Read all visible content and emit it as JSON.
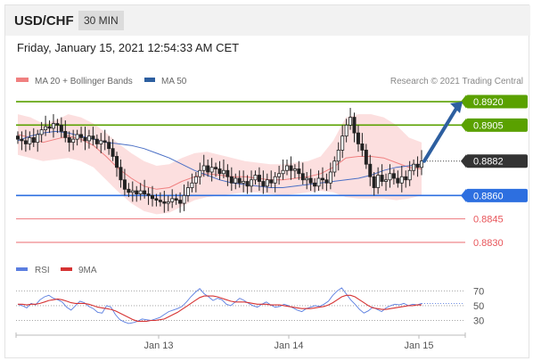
{
  "header": {
    "symbol": "USD/CHF",
    "timeframe": "30 MIN"
  },
  "datetime": "Friday, January 15, 2021 12:54:33 AM CET",
  "legend": {
    "ma20_label": "MA 20 + Bollinger Bands",
    "ma50_label": "MA 50",
    "credit": "Research © 2021 Trading Central",
    "rsi_label": "RSI",
    "ma9_label": "9MA"
  },
  "colors": {
    "green_level": "#5aa100",
    "blue_level": "#2d6fe0",
    "red_level": "#e8555a",
    "current_price": "#333333",
    "bollinger_fill": "#fbd9d9",
    "ma20": "#f08080",
    "ma50": "#4a6fc5",
    "arrow": "#2d5fa0",
    "candle": "#222222",
    "rsi": "#5b7ee0",
    "rsi_ma": "#d63333"
  },
  "chart_data": [
    {
      "type": "candlestick",
      "title": "USD/CHF",
      "xlabel": "",
      "ylabel": "",
      "ylim": [
        0.8822,
        0.8928
      ],
      "x_tick_labels": [
        "Jan 13",
        "Jan 14",
        "Jan 15"
      ],
      "closes": [
        0.8896,
        0.8895,
        0.8893,
        0.8897,
        0.8894,
        0.8899,
        0.8902,
        0.8904,
        0.8903,
        0.8906,
        0.8905,
        0.8901,
        0.8897,
        0.8894,
        0.8896,
        0.8899,
        0.8897,
        0.8895,
        0.8898,
        0.8896,
        0.8893,
        0.8895,
        0.8894,
        0.889,
        0.8885,
        0.8878,
        0.887,
        0.8864,
        0.8862,
        0.8863,
        0.8861,
        0.8863,
        0.8861,
        0.886,
        0.8858,
        0.8857,
        0.8856,
        0.8855,
        0.8856,
        0.8858,
        0.8857,
        0.8855,
        0.886,
        0.8865,
        0.8868,
        0.8872,
        0.8876,
        0.8879,
        0.8875,
        0.8878,
        0.8877,
        0.8874,
        0.8876,
        0.8872,
        0.8868,
        0.8871,
        0.8868,
        0.8869,
        0.8866,
        0.887,
        0.8873,
        0.8869,
        0.8866,
        0.887,
        0.8868,
        0.8872,
        0.8874,
        0.8876,
        0.8879,
        0.8876,
        0.8877,
        0.8874,
        0.887,
        0.8871,
        0.8868,
        0.8866,
        0.8871,
        0.887,
        0.8868,
        0.8875,
        0.8882,
        0.8889,
        0.8898,
        0.8905,
        0.891,
        0.89,
        0.8893,
        0.8889,
        0.888,
        0.8872,
        0.8865,
        0.8873,
        0.8869,
        0.887,
        0.8874,
        0.8871,
        0.8868,
        0.8872,
        0.887,
        0.8876,
        0.888,
        0.8878,
        0.8882
      ],
      "levels": [
        {
          "price": 0.892,
          "label": "0.8920",
          "kind": "resistance"
        },
        {
          "price": 0.8905,
          "label": "0.8905",
          "kind": "resistance"
        },
        {
          "price": 0.8882,
          "label": "0.8882",
          "kind": "current"
        },
        {
          "price": 0.886,
          "label": "0.8860",
          "kind": "support"
        },
        {
          "price": 0.8845,
          "label": "0.8845",
          "kind": "support"
        },
        {
          "price": 0.883,
          "label": "0.8830",
          "kind": "support"
        }
      ],
      "ma50": [
        0.8895,
        0.8898,
        0.89,
        0.8901,
        0.89,
        0.8898,
        0.8896,
        0.8894,
        0.8893,
        0.8892,
        0.889,
        0.8887,
        0.8884,
        0.888,
        0.8876,
        0.8873,
        0.887,
        0.8868,
        0.8867,
        0.8866,
        0.8865,
        0.8865,
        0.8866,
        0.8867,
        0.8868,
        0.8869,
        0.887,
        0.8871,
        0.8873,
        0.8876,
        0.8878,
        0.8879,
        0.888
      ],
      "bb_upper": [
        0.8912,
        0.891,
        0.8906,
        0.8908,
        0.8912,
        0.891,
        0.8906,
        0.89,
        0.8893,
        0.8887,
        0.8882,
        0.8879,
        0.888,
        0.8884,
        0.8887,
        0.8888,
        0.8886,
        0.8884,
        0.8882,
        0.8881,
        0.888,
        0.888,
        0.8881,
        0.8882,
        0.8885,
        0.8895,
        0.891,
        0.8912,
        0.8912,
        0.891,
        0.8905,
        0.8897,
        0.8894
      ],
      "bb_lower": [
        0.8886,
        0.8884,
        0.8882,
        0.8883,
        0.8884,
        0.8882,
        0.8878,
        0.887,
        0.8862,
        0.8855,
        0.885,
        0.8848,
        0.8849,
        0.8853,
        0.8857,
        0.8859,
        0.886,
        0.8861,
        0.8862,
        0.8862,
        0.8861,
        0.886,
        0.8861,
        0.8862,
        0.8863,
        0.8862,
        0.8859,
        0.8858,
        0.8858,
        0.8858,
        0.8857,
        0.8858,
        0.886
      ],
      "ma20": [
        0.8899,
        0.8897,
        0.8894,
        0.8896,
        0.8898,
        0.8896,
        0.8892,
        0.8885,
        0.8877,
        0.8871,
        0.8866,
        0.8864,
        0.8865,
        0.8869,
        0.8872,
        0.8874,
        0.8873,
        0.8872,
        0.8872,
        0.8871,
        0.887,
        0.887,
        0.8871,
        0.8872,
        0.8874,
        0.8878,
        0.8884,
        0.8885,
        0.8885,
        0.8884,
        0.8881,
        0.8878,
        0.8877
      ]
    },
    {
      "type": "line",
      "title": "RSI",
      "xlabel": "",
      "ylabel": "",
      "ylim": [
        15,
        80
      ],
      "y_ticks": [
        30,
        50,
        70
      ],
      "series": [
        {
          "name": "RSI",
          "values": [
            52,
            50,
            47,
            53,
            51,
            58,
            62,
            64,
            60,
            58,
            55,
            48,
            44,
            50,
            56,
            54,
            49,
            46,
            41,
            40,
            50,
            48,
            38,
            31,
            28,
            26,
            27,
            29,
            32,
            31,
            30,
            32,
            34,
            38,
            42,
            44,
            46,
            49,
            55,
            62,
            68,
            73,
            66,
            62,
            57,
            60,
            58,
            52,
            50,
            55,
            60,
            57,
            53,
            50,
            48,
            52,
            55,
            51,
            48,
            49,
            52,
            50,
            47,
            44,
            42,
            46,
            48,
            50,
            49,
            52,
            56,
            64,
            70,
            74,
            66,
            58,
            52,
            45,
            40,
            43,
            48,
            45,
            42,
            47,
            50,
            52,
            51,
            53,
            50,
            52,
            51,
            53
          ]
        },
        {
          "name": "9MA",
          "values": [
            52,
            52,
            51,
            52,
            52,
            53,
            55,
            57,
            58,
            59,
            58,
            56,
            54,
            53,
            53,
            53,
            52,
            50,
            48,
            47,
            46,
            45,
            43,
            40,
            37,
            34,
            31,
            29,
            29,
            29,
            30,
            30,
            31,
            32,
            35,
            38,
            41,
            45,
            49,
            53,
            57,
            61,
            63,
            63,
            63,
            62,
            60,
            58,
            56,
            55,
            55,
            55,
            54,
            53,
            52,
            52,
            52,
            51,
            51,
            51,
            50,
            49,
            48,
            47,
            46,
            46,
            46,
            47,
            48,
            49,
            51,
            54,
            58,
            62,
            64,
            64,
            62,
            58,
            54,
            50,
            47,
            46,
            45,
            45,
            46,
            47,
            48,
            49,
            50,
            50,
            51,
            51
          ]
        }
      ]
    }
  ]
}
